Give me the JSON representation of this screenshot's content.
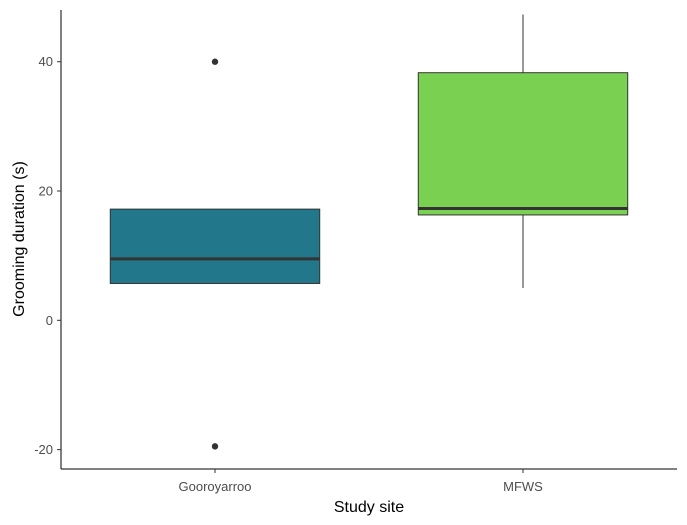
{
  "chart_data": {
    "type": "boxplot",
    "title": "",
    "xlabel": "Study site",
    "ylabel": "Grooming duration (s)",
    "categories": [
      "Gooroyarroo",
      "MFWS"
    ],
    "ylim": [
      -23,
      48
    ],
    "yticks": [
      -20,
      0,
      20,
      40
    ],
    "grid": false,
    "legend": "none",
    "boxes": [
      {
        "category": "Gooroyarroo",
        "color": "#23778B",
        "min": 5.7,
        "q1": 5.7,
        "median": 9.5,
        "q3": 17.2,
        "max": 17.2,
        "outliers": [
          40,
          -19.5
        ]
      },
      {
        "category": "MFWS",
        "color": "#7AD151",
        "min": 5,
        "q1": 16.3,
        "median": 17.3,
        "q3": 38.3,
        "max": 47.3,
        "outliers": []
      }
    ]
  }
}
